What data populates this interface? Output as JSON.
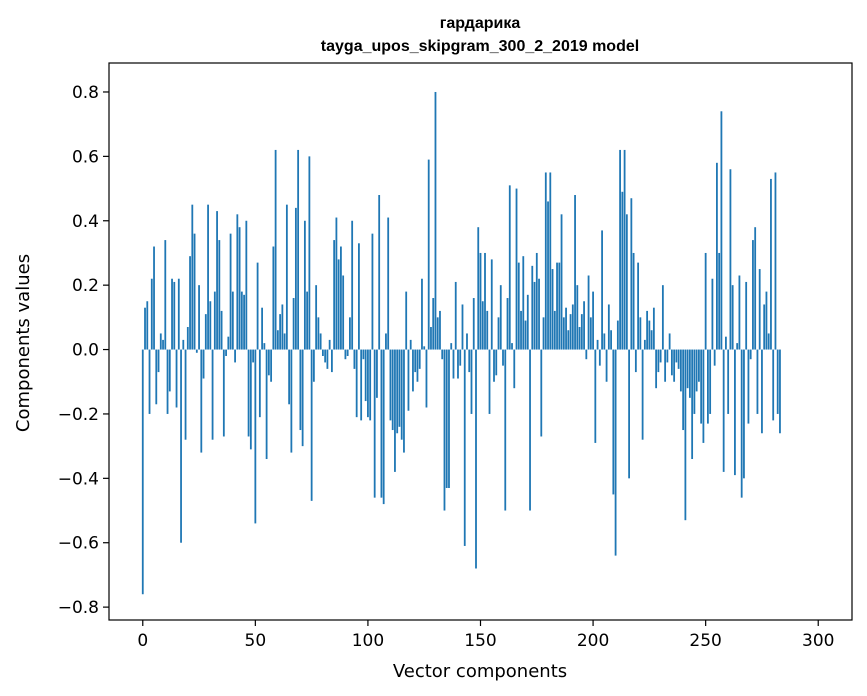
{
  "chart_data": {
    "type": "bar",
    "title": "гардарика",
    "subtitle": "tayga_upos_skipgram_300_2_2019 model",
    "xlabel": "Vector components",
    "ylabel": "Components values",
    "xlim": [
      -15,
      315
    ],
    "ylim": [
      -0.84,
      0.89
    ],
    "xticks": [
      0,
      50,
      100,
      150,
      200,
      250,
      300
    ],
    "xtick_labels": [
      "0",
      "50",
      "100",
      "150",
      "200",
      "250",
      "300"
    ],
    "yticks": [
      -0.8,
      -0.6,
      -0.4,
      -0.2,
      0.0,
      0.2,
      0.4,
      0.6,
      0.8
    ],
    "ytick_labels": [
      "−0.8",
      "−0.6",
      "−0.4",
      "−0.2",
      "0.0",
      "0.2",
      "0.4",
      "0.6",
      "0.8"
    ],
    "bar_color": "#1f77b4",
    "grid": false,
    "x_start": 0,
    "values": [
      -0.76,
      0.13,
      0.15,
      -0.2,
      0.22,
      0.32,
      -0.17,
      -0.07,
      0.05,
      0.03,
      0.34,
      -0.2,
      -0.13,
      0.22,
      0.21,
      -0.18,
      0.22,
      -0.6,
      0.03,
      -0.28,
      0.07,
      0.29,
      0.45,
      0.36,
      -0.01,
      0.2,
      -0.32,
      -0.09,
      0.11,
      0.45,
      0.15,
      -0.28,
      0.18,
      0.43,
      0.34,
      0.12,
      -0.27,
      -0.02,
      0.04,
      0.36,
      0.18,
      -0.04,
      0.42,
      0.38,
      0.18,
      0.17,
      0.4,
      -0.27,
      -0.31,
      -0.04,
      -0.54,
      0.27,
      -0.21,
      0.13,
      0.02,
      -0.34,
      -0.08,
      -0.1,
      0.32,
      0.62,
      0.06,
      0.11,
      0.14,
      0.05,
      0.45,
      -0.17,
      -0.32,
      0.16,
      0.44,
      0.62,
      -0.25,
      -0.3,
      0.4,
      0.18,
      0.6,
      -0.47,
      -0.1,
      0.2,
      0.1,
      0.05,
      -0.02,
      -0.04,
      -0.06,
      0.03,
      -0.07,
      0.34,
      0.41,
      0.28,
      0.32,
      0.23,
      -0.03,
      -0.02,
      0.1,
      0.4,
      -0.06,
      -0.21,
      0.33,
      -0.22,
      -0.03,
      -0.16,
      -0.21,
      -0.22,
      0.36,
      -0.46,
      -0.15,
      0.48,
      -0.46,
      -0.48,
      0.05,
      0.41,
      -0.22,
      -0.25,
      -0.38,
      -0.26,
      -0.24,
      -0.28,
      -0.32,
      0.18,
      -0.19,
      0.03,
      -0.13,
      -0.07,
      -0.1,
      -0.06,
      0.22,
      0.01,
      -0.18,
      0.59,
      0.07,
      0.16,
      0.8,
      0.1,
      0.12,
      -0.03,
      -0.5,
      -0.43,
      -0.43,
      0.02,
      -0.09,
      0.21,
      -0.09,
      -0.05,
      0.14,
      -0.61,
      0.05,
      -0.07,
      -0.2,
      0.16,
      -0.68,
      0.38,
      0.3,
      0.15,
      0.3,
      0.12,
      -0.2,
      0.28,
      -0.1,
      -0.08,
      0.1,
      0.2,
      -0.05,
      -0.5,
      0.16,
      0.51,
      0.02,
      -0.12,
      0.5,
      0.27,
      0.12,
      0.29,
      0.09,
      0.17,
      -0.5,
      0.26,
      0.21,
      0.3,
      0.22,
      -0.27,
      0.1,
      0.55,
      0.46,
      0.55,
      0.25,
      0.12,
      0.27,
      0.27,
      0.42,
      0.1,
      0.13,
      0.06,
      0.11,
      0.14,
      0.48,
      0.2,
      0.07,
      0.11,
      0.15,
      -0.03,
      0.23,
      0.1,
      0.18,
      -0.29,
      0.03,
      -0.05,
      0.37,
      0.05,
      -0.1,
      0.14,
      0.06,
      -0.45,
      -0.64,
      0.09,
      0.62,
      0.49,
      0.62,
      0.42,
      -0.4,
      0.47,
      0.3,
      -0.07,
      0.27,
      0.1,
      -0.28,
      0.03,
      0.12,
      0.09,
      0.06,
      0.13,
      -0.12,
      -0.07,
      -0.04,
      0.2,
      -0.1,
      -0.04,
      0.05,
      -0.08,
      -0.1,
      -0.04,
      -0.06,
      -0.13,
      -0.25,
      -0.53,
      -0.12,
      -0.15,
      -0.34,
      -0.2,
      -0.13,
      -0.1,
      -0.23,
      -0.29,
      0.3,
      -0.23,
      -0.2,
      0.22,
      -0.05,
      0.58,
      0.3,
      0.74,
      -0.38,
      0.04,
      -0.2,
      0.56,
      0.2,
      -0.39,
      0.02,
      0.23,
      -0.46,
      -0.4,
      0.21,
      -0.23,
      -0.03,
      0.34,
      0.38,
      -0.2,
      0.25,
      -0.26,
      0.14,
      0.18,
      0.05,
      0.53,
      -0.22,
      0.55,
      -0.2,
      -0.26
    ]
  }
}
